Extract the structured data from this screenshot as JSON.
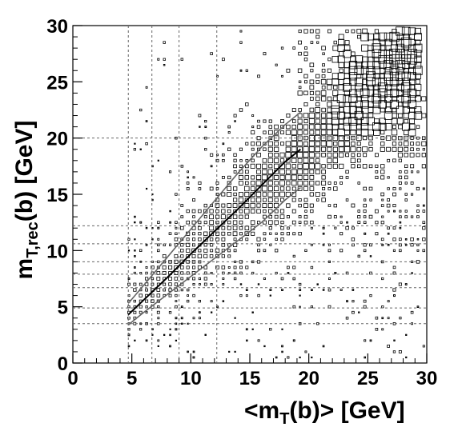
{
  "chart_data": {
    "type": "heatmap",
    "title": "",
    "xlabel": {
      "main": "<m",
      "sub": "T",
      "rest": "(b)> [GeV]"
    },
    "ylabel": {
      "main": "m",
      "sub": "T,rec",
      "rest": "(b) [GeV]"
    },
    "xlim": [
      0,
      30
    ],
    "ylim": [
      0,
      30
    ],
    "x_ticks": [
      "0",
      "5",
      "10",
      "15",
      "20",
      "25",
      "30"
    ],
    "y_ticks": [
      "0",
      "5",
      "10",
      "15",
      "20",
      "25",
      "30"
    ],
    "grid": false,
    "marker": "box (area proportional to bin content)",
    "description_of_density": "Box-histogram of reconstructed transverse mass vs mean transverse mass; populated above x≈4.5, density concentrated along diagonal, largest boxes at upper right.",
    "vertical_reference_lines_x": [
      4.7,
      6.7,
      9.0,
      12.2
    ],
    "horizontal_reference_lines_y": [
      3.5,
      4.9,
      6.7,
      7.9,
      9.0,
      10.6,
      12.2,
      20.0
    ],
    "series": [
      {
        "name": "",
        "color": "#000000",
        "x": [
          4.7,
          6,
          8,
          10,
          12,
          14,
          16,
          18,
          19.3
        ],
        "y": [
          4.3,
          5.6,
          7.6,
          9.7,
          11.7,
          13.7,
          15.8,
          17.9,
          19.0
        ]
      },
      {
        "name": "",
        "color": "#666666",
        "x": [
          4.7,
          6,
          8,
          10,
          12,
          14,
          16,
          18,
          19.3
        ],
        "y": [
          5.3,
          6.9,
          9.4,
          11.9,
          14.4,
          16.9,
          19.2,
          21.2,
          22.3
        ]
      },
      {
        "name": "",
        "color": "#666666",
        "x": [
          4.7,
          6,
          8,
          10,
          12,
          14,
          16,
          18,
          19.3
        ],
        "y": [
          3.4,
          4.5,
          6.1,
          7.7,
          9.3,
          10.9,
          12.5,
          14.5,
          15.6
        ]
      }
    ]
  }
}
